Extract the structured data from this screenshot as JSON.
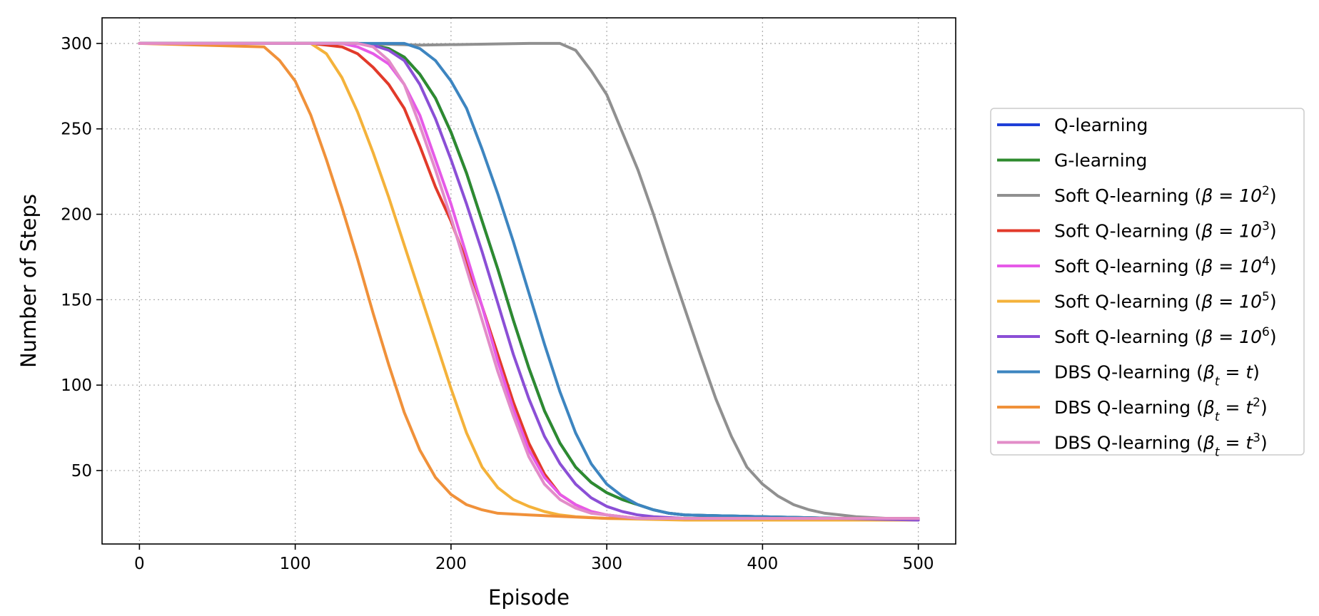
{
  "chart_data": {
    "type": "line",
    "title": "",
    "xlabel": "Episode",
    "ylabel": "Number of Steps",
    "xlim": [
      -24,
      524
    ],
    "ylim": [
      7,
      315
    ],
    "xticks": [
      0,
      100,
      200,
      300,
      400,
      500
    ],
    "yticks": [
      50,
      100,
      150,
      200,
      250,
      300
    ],
    "xtick_labels": [
      "0",
      "100",
      "200",
      "300",
      "400",
      "500"
    ],
    "ytick_labels": [
      "50",
      "100",
      "150",
      "200",
      "250",
      "300"
    ],
    "grid": true,
    "legend_position": "center-right outside",
    "series": [
      {
        "name": "Q-learning",
        "legend_base": "Q-learning",
        "legend_math": "",
        "color": "#1f3fd8",
        "x": [
          0,
          140,
          150,
          160,
          170,
          180,
          190,
          200,
          210,
          220,
          230,
          240,
          250,
          260,
          270,
          280,
          290,
          300,
          310,
          320,
          330,
          340,
          350,
          400,
          450,
          500
        ],
        "y": [
          300,
          300,
          299,
          297,
          292,
          282,
          268,
          248,
          224,
          196,
          168,
          138,
          110,
          85,
          66,
          52,
          43,
          37,
          33,
          30,
          27,
          25,
          24,
          23,
          22,
          22
        ]
      },
      {
        "name": "G-learning",
        "legend_base": "G-learning",
        "legend_math": "",
        "color": "#2e8b2e",
        "x": [
          0,
          140,
          150,
          160,
          170,
          180,
          190,
          200,
          210,
          220,
          230,
          240,
          250,
          260,
          270,
          280,
          290,
          300,
          310,
          320,
          330,
          340,
          350,
          400,
          450,
          500
        ],
        "y": [
          300,
          300,
          299,
          297,
          292,
          282,
          268,
          248,
          224,
          196,
          168,
          138,
          110,
          85,
          66,
          52,
          43,
          37,
          33,
          30,
          27,
          25,
          24,
          23,
          22,
          22
        ]
      },
      {
        "name": "Soft Q-learning (β=10^2)",
        "legend_base": "Soft Q-learning (",
        "legend_math": "β = 10",
        "legend_sup": "2",
        "legend_tail": ")",
        "color": "#909090",
        "x": [
          0,
          140,
          180,
          250,
          270,
          280,
          290,
          300,
          310,
          320,
          330,
          340,
          350,
          360,
          370,
          380,
          390,
          400,
          410,
          420,
          430,
          440,
          450,
          460,
          480,
          500
        ],
        "y": [
          300,
          300,
          299,
          300,
          300,
          296,
          284,
          270,
          248,
          226,
          200,
          172,
          145,
          118,
          92,
          70,
          52,
          42,
          35,
          30,
          27,
          25,
          24,
          23,
          22,
          21
        ]
      },
      {
        "name": "Soft Q-learning (β=10^3)",
        "legend_base": "Soft Q-learning (",
        "legend_math": "β = 10",
        "legend_sup": "3",
        "legend_tail": ")",
        "color": "#e23a2a",
        "x": [
          0,
          110,
          120,
          130,
          140,
          150,
          160,
          170,
          180,
          190,
          200,
          210,
          220,
          230,
          240,
          250,
          260,
          270,
          280,
          290,
          300,
          310,
          320,
          350,
          400,
          500
        ],
        "y": [
          300,
          300,
          299,
          298,
          294,
          286,
          276,
          262,
          240,
          216,
          196,
          172,
          146,
          118,
          90,
          66,
          48,
          36,
          30,
          26,
          24,
          23,
          22,
          22,
          22,
          22
        ]
      },
      {
        "name": "Soft Q-learning (β=10^4)",
        "legend_base": "Soft Q-learning (",
        "legend_math": "β = 10",
        "legend_sup": "4",
        "legend_tail": ")",
        "color": "#e65ae8",
        "x": [
          0,
          130,
          140,
          150,
          160,
          170,
          180,
          190,
          200,
          210,
          220,
          230,
          240,
          250,
          260,
          270,
          280,
          290,
          300,
          310,
          320,
          350,
          400,
          500
        ],
        "y": [
          300,
          300,
          298,
          294,
          288,
          276,
          258,
          232,
          206,
          176,
          146,
          114,
          86,
          62,
          46,
          36,
          30,
          26,
          24,
          23,
          22,
          22,
          22,
          22
        ]
      },
      {
        "name": "Soft Q-learning (β=10^5)",
        "legend_base": "Soft Q-learning (",
        "legend_math": "β = 10",
        "legend_sup": "5",
        "legend_tail": ")",
        "color": "#f4b23a",
        "x": [
          0,
          110,
          120,
          130,
          140,
          150,
          160,
          170,
          180,
          190,
          200,
          210,
          220,
          230,
          240,
          250,
          260,
          270,
          280,
          300,
          350,
          400,
          500
        ],
        "y": [
          300,
          300,
          294,
          280,
          260,
          236,
          210,
          182,
          154,
          126,
          98,
          72,
          52,
          40,
          33,
          29,
          26,
          24,
          23,
          22,
          21,
          21,
          21
        ]
      },
      {
        "name": "Soft Q-learning (β=10^6)",
        "legend_base": "Soft Q-learning (",
        "legend_math": "β = 10",
        "legend_sup": "6",
        "legend_tail": ")",
        "color": "#8b4fd6",
        "x": [
          0,
          140,
          150,
          160,
          170,
          180,
          190,
          200,
          210,
          220,
          230,
          240,
          250,
          260,
          270,
          280,
          290,
          300,
          310,
          320,
          330,
          350,
          400,
          450,
          500
        ],
        "y": [
          300,
          300,
          299,
          296,
          290,
          276,
          256,
          232,
          206,
          178,
          148,
          118,
          92,
          70,
          54,
          42,
          34,
          29,
          26,
          24,
          23,
          22,
          22,
          22,
          21
        ]
      },
      {
        "name": "DBS Q-learning (βt = t)",
        "legend_base": "DBS Q-learning (",
        "legend_math": "β",
        "legend_sub": "t",
        "legend_math2": " = t",
        "legend_tail": ")",
        "color": "#3d85c0",
        "x": [
          0,
          170,
          180,
          190,
          200,
          210,
          220,
          230,
          240,
          250,
          260,
          270,
          280,
          290,
          300,
          310,
          320,
          330,
          340,
          350,
          400,
          450,
          500
        ],
        "y": [
          300,
          300,
          297,
          290,
          278,
          262,
          238,
          212,
          184,
          154,
          124,
          96,
          72,
          54,
          42,
          35,
          30,
          27,
          25,
          24,
          23,
          22,
          22
        ]
      },
      {
        "name": "DBS Q-learning (βt = t^2)",
        "legend_base": "DBS Q-learning (",
        "legend_math": "β",
        "legend_sub": "t",
        "legend_math2": " = t",
        "legend_sup": "2",
        "legend_tail": ")",
        "color": "#f0913a",
        "x": [
          0,
          80,
          90,
          100,
          110,
          120,
          130,
          140,
          150,
          160,
          170,
          180,
          190,
          200,
          210,
          220,
          230,
          250,
          300,
          400,
          500
        ],
        "y": [
          300,
          298,
          290,
          278,
          258,
          232,
          204,
          174,
          142,
          112,
          84,
          62,
          46,
          36,
          30,
          27,
          25,
          24,
          22,
          22,
          22
        ]
      },
      {
        "name": "DBS Q-learning (βt = t^3)",
        "legend_base": "DBS Q-learning (",
        "legend_math": "β",
        "legend_sub": "t",
        "legend_math2": " = t",
        "legend_sup": "3",
        "legend_tail": ")",
        "color": "#e28cc8",
        "x": [
          0,
          140,
          150,
          160,
          170,
          180,
          190,
          200,
          210,
          220,
          230,
          240,
          250,
          260,
          270,
          280,
          290,
          300,
          310,
          320,
          350,
          400,
          500
        ],
        "y": [
          300,
          300,
          298,
          290,
          276,
          252,
          226,
          198,
          168,
          138,
          108,
          82,
          58,
          42,
          33,
          28,
          25,
          24,
          23,
          22,
          22,
          22,
          22
        ]
      }
    ]
  }
}
